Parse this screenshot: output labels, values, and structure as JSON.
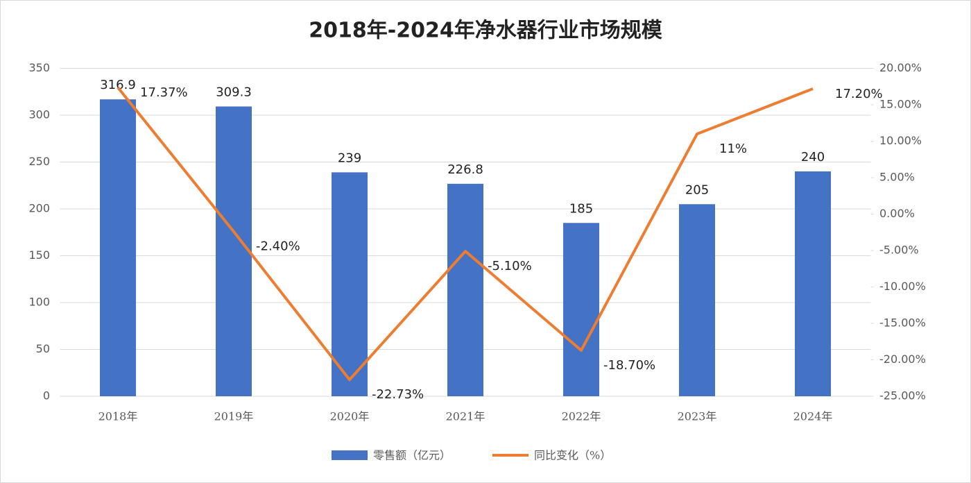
{
  "chart_data": {
    "type": "bar",
    "title": "2018年-2024年净水器行业市场规模",
    "categories": [
      "2018年",
      "2019年",
      "2020年",
      "2021年",
      "2022年",
      "2023年",
      "2024年"
    ],
    "series": [
      {
        "name": "零售额（亿元）",
        "type": "bar",
        "color": "#4472c4",
        "values": [
          316.9,
          309.3,
          239,
          226.8,
          185,
          205,
          240
        ]
      },
      {
        "name": "同比变化（%）",
        "type": "line",
        "axis": "y2",
        "color": "#ed7d31",
        "values": [
          17.37,
          -2.4,
          -22.73,
          -5.1,
          -18.7,
          11,
          17.2
        ],
        "value_labels": [
          "17.37%",
          "-2.40%",
          "-22.73%",
          "-5.10%",
          "-18.70%",
          "11%",
          "17.20%"
        ]
      }
    ],
    "ylim": [
      0,
      350
    ],
    "yticks": [
      0,
      50,
      100,
      150,
      200,
      250,
      300,
      350
    ],
    "y2lim": [
      -25,
      20
    ],
    "y2ticks": [
      {
        "value": -25,
        "label": "-25.00%"
      },
      {
        "value": -20,
        "label": "-20.00%"
      },
      {
        "value": -15,
        "label": "-15.00%"
      },
      {
        "value": -10,
        "label": "-10.00%"
      },
      {
        "value": -5,
        "label": "-5.00%"
      },
      {
        "value": 0,
        "label": "0.00%"
      },
      {
        "value": 5,
        "label": "5.00%"
      },
      {
        "value": 10,
        "label": "10.00%"
      },
      {
        "value": 15,
        "label": "15.00%"
      },
      {
        "value": 20,
        "label": "20.00%"
      }
    ],
    "grid": true,
    "legend": "bottom"
  }
}
